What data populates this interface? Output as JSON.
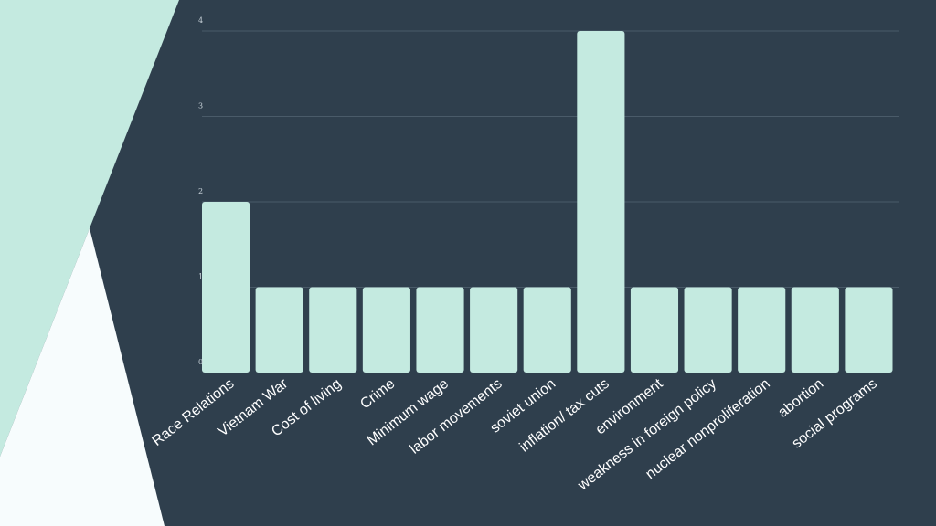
{
  "colors": {
    "background": "#2f3f4d",
    "accent": "#c4eae0",
    "panel_white": "#f7fcfd",
    "grid": "#4a5b69",
    "tick_text": "#c9d3da",
    "label_text": "#ffffff"
  },
  "chart_data": {
    "type": "bar",
    "title": "",
    "xlabel": "",
    "ylabel": "",
    "categories": [
      "Race Relations",
      "Vietnam War",
      "Cost of living",
      "Crime",
      "Minimum wage",
      "labor movements",
      "soviet union",
      "inflation/ tax cuts",
      "environment",
      "weakness in foreign policy",
      "nuclear nonproliferation",
      "abortion",
      "social programs"
    ],
    "values": [
      2,
      1,
      1,
      1,
      1,
      1,
      1,
      4,
      1,
      1,
      1,
      1,
      1
    ],
    "ylim": [
      0,
      4
    ],
    "yticks": [
      "0",
      "1",
      "2",
      "3",
      "4"
    ],
    "grid": true,
    "legend": "none"
  }
}
